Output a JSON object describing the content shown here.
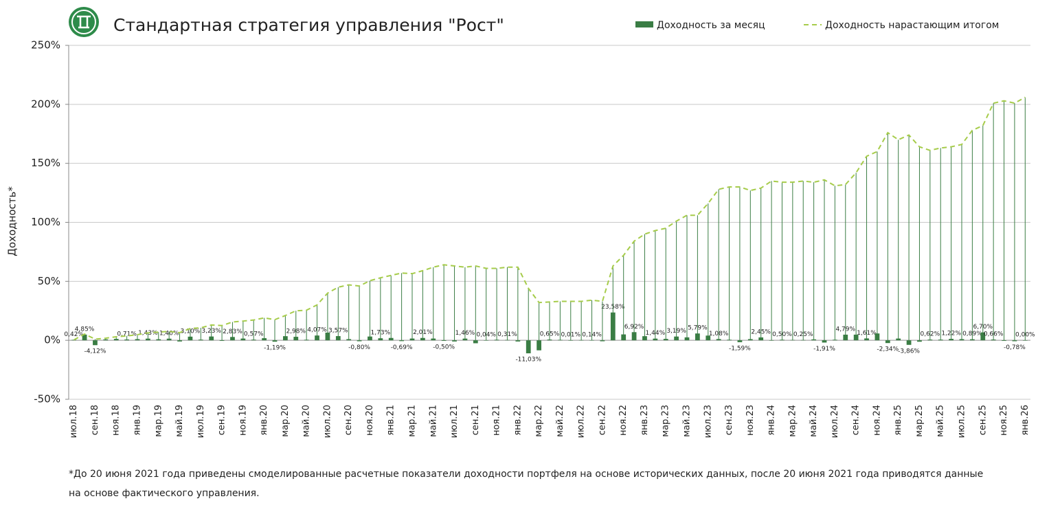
{
  "chart_data": {
    "type": "bar",
    "title": "Стандартная стратегия управления \"Рост\"",
    "y_label": "Доходность*",
    "footnote": "*До 20 июня 2021 года приведены смоделированные расчетные показатели доходности портфеля на основе исторических данных, после 20 июня 2021 года приводятся данные на основе фактического управления.",
    "categories": [
      "июл.18",
      null,
      "сен.18",
      null,
      "ноя.18",
      null,
      "янв.19",
      null,
      "мар.19",
      null,
      "май.19",
      null,
      "июл.19",
      null,
      "сен.19",
      null,
      "ноя.19",
      null,
      "янв.20",
      null,
      "мар.20",
      null,
      "май.20",
      null,
      "июл.20",
      null,
      "сен.20",
      null,
      "ноя.20",
      null,
      "янв.21",
      null,
      "мар.21",
      null,
      "май.21",
      null,
      "июл.21",
      null,
      "сен.21",
      null,
      "ноя.21",
      null,
      "янв.22",
      null,
      "мар.22",
      null,
      "май.22",
      null,
      "июл.22",
      null,
      "сен.22",
      null,
      "ноя.22",
      null,
      "янв.23",
      null,
      "мар.23",
      null,
      "май.23",
      null,
      "июл.23",
      null,
      "сен.23",
      null,
      "ноя.23",
      null,
      "янв.24",
      null,
      "мар.24",
      null,
      "май.24",
      null,
      "июл.24",
      null,
      "сен.24",
      null,
      "ноя.24",
      null,
      "янв.25",
      null,
      "мар.25",
      null,
      "май.25",
      null,
      "июл.25",
      null,
      "сен.25",
      null,
      "ноя.25",
      null,
      "янв.26"
    ],
    "series": [
      {
        "name": "Доходность за месяц",
        "type": "bar",
        "color": "#3a7d44",
        "values": [
          0.42,
          4.85,
          -4.12,
          0.8,
          1.2,
          0.71,
          1.0,
          1.43,
          0.9,
          1.4,
          -1.0,
          3.1,
          0.6,
          3.23,
          -0.5,
          2.83,
          1.5,
          0.57,
          1.8,
          -1.19,
          3.5,
          2.98,
          0.5,
          4.07,
          6.5,
          3.57,
          1.0,
          -0.8,
          3.2,
          1.73,
          2.0,
          -0.69,
          1.5,
          2.01,
          1.5,
          -0.5,
          -1.0,
          1.46,
          -2.5,
          0.04,
          0.5,
          0.31,
          -1.0,
          -11.03,
          -8.5,
          0.65,
          0.4,
          0.01,
          0.2,
          0.14,
          -0.8,
          23.58,
          5.0,
          6.92,
          3.5,
          1.44,
          1.2,
          3.19,
          2.5,
          5.79,
          4.0,
          1.08,
          0.5,
          -1.59,
          1.0,
          2.45,
          -0.3,
          0.5,
          0.3,
          0.25,
          0.8,
          -1.91,
          0.5,
          4.79,
          4.8,
          1.61,
          5.8,
          -2.34,
          1.5,
          -3.86,
          -1.2,
          0.62,
          0.6,
          1.22,
          1.0,
          0.89,
          6.7,
          0.66,
          -0.5,
          -0.78,
          0.0
        ],
        "value_labels": [
          "0,42%",
          "4,85%",
          "-4,12%",
          null,
          null,
          "0,71%",
          null,
          "1,43%",
          null,
          "1,40%",
          null,
          "3,10%",
          null,
          "3,23%",
          null,
          "2,83%",
          null,
          "0,57%",
          null,
          "-1,19%",
          null,
          "2,98%",
          null,
          "4,07%",
          null,
          "3,57%",
          null,
          "-0,80%",
          null,
          "1,73%",
          null,
          "-0,69%",
          null,
          "2,01%",
          null,
          "-0,50%",
          null,
          "1,46%",
          null,
          "0,04%",
          null,
          "0,31%",
          null,
          "-11,03%",
          null,
          "0,65%",
          null,
          "0,01%",
          null,
          "0,14%",
          null,
          "23,58%",
          null,
          "6,92%",
          null,
          "1,44%",
          null,
          "3,19%",
          null,
          "5,79%",
          null,
          "1,08%",
          null,
          "-1,59%",
          null,
          "2,45%",
          null,
          "0,50%",
          null,
          "0,25%",
          null,
          "-1,91%",
          null,
          "4,79%",
          null,
          "1,61%",
          null,
          "-2,34%",
          null,
          "-3,86%",
          null,
          "0,62%",
          null,
          "1,22%",
          null,
          "0,89%",
          "6,70%",
          "0,66%",
          null,
          "-0,78%",
          "0,00%"
        ]
      },
      {
        "name": "Доходность нарастающим итогом",
        "type": "line",
        "color": "#a6cc4a",
        "drop_color": "#3a7d44",
        "dashed": true,
        "values": [
          0.4,
          5.3,
          1.0,
          1.8,
          3.0,
          3.7,
          4.8,
          6.3,
          7.0,
          7.5,
          6.5,
          10.0,
          10.6,
          13.0,
          12.5,
          15.5,
          16.3,
          17.2,
          19.0,
          17.5,
          21.0,
          25.0,
          25.5,
          30.0,
          40.0,
          45.0,
          47.0,
          46.0,
          50.5,
          53.0,
          55.0,
          57.0,
          56.5,
          59.0,
          62.0,
          64.0,
          63.0,
          62.0,
          63.0,
          61.0,
          61.0,
          62.0,
          62.0,
          44.0,
          32.0,
          32.5,
          33.0,
          33.0,
          33.0,
          34.0,
          33.0,
          63.0,
          72.0,
          84.0,
          90.0,
          93.0,
          95.0,
          101.0,
          106.0,
          106.0,
          116.0,
          128.0,
          130.0,
          130.0,
          127.0,
          129.0,
          135.0,
          134.0,
          134.0,
          135.0,
          134.0,
          136.0,
          131.0,
          132.0,
          142.0,
          156.0,
          160.0,
          176.0,
          170.0,
          174.0,
          164.0,
          161.0,
          163.0,
          164.0,
          166.0,
          178.0,
          182.0,
          201.0,
          203.0,
          201.0,
          206.0
        ]
      }
    ],
    "ylim": [
      -50,
      250
    ],
    "yticks": [
      {
        "value": -50,
        "label": "-50%"
      },
      {
        "value": 0,
        "label": "0%"
      },
      {
        "value": 50,
        "label": "50%"
      },
      {
        "value": 100,
        "label": "100%"
      },
      {
        "value": 150,
        "label": "150%"
      },
      {
        "value": 200,
        "label": "200%"
      },
      {
        "value": 250,
        "label": "250%"
      }
    ],
    "grid": true,
    "legend": "top-right"
  }
}
